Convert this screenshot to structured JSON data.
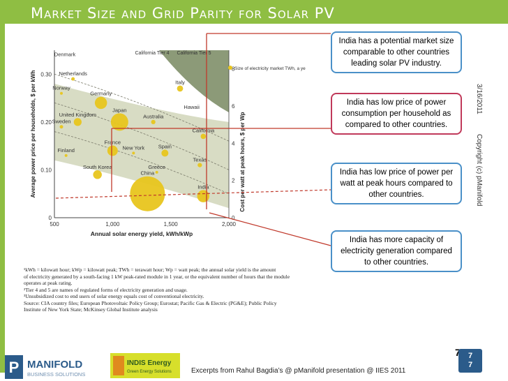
{
  "slide": {
    "title": "Market Size and Grid Parity for Solar PV",
    "side_date": "3/16/2011",
    "side_copyright": "Copyright (c) pManifold",
    "footer_note": "Excerpts from Rahul Bagdia’s @ pManifold presentation @ IIES 2011",
    "page_number": "7",
    "page_box_lines": [
      "7",
      "7"
    ]
  },
  "callouts": [
    "India has a potential market size comparable to other countries leading solar PV industry.",
    "India has low price of power consumption per household as compared to other countries.",
    "India has low price of power per watt at peak hours compared to other countries.",
    "India has more capacity of electricity generation compared to other countries."
  ],
  "logos": {
    "pmanifold_letter": "P",
    "pmanifold_name": "MANIFOLD",
    "pmanifold_sub": "BUSINESS SOLUTIONS",
    "indis_name": "INDIS Energy",
    "indis_sub": "Green Energy Solutions"
  },
  "colors": {
    "accent_green": "#8fbe43",
    "bubble_yellow": "#e8c51e",
    "band_dark": "#8c9a78",
    "band_light": "#d8dcc4",
    "callout_blue": "#4a90c8",
    "callout_red": "#c0395a",
    "connector_red": "#c0392b",
    "page_box": "#2b5b8a"
  },
  "chart_data": {
    "type": "scatter",
    "xlabel": "Annual solar energy yield, kWh/kWp",
    "ylabel": "Average power price per households, $ per kWh",
    "y2label": "Cost per watt at peak hours, $ per Wp",
    "xlim": [
      500,
      2000
    ],
    "ylim": [
      0,
      0.35
    ],
    "x_ticks": [
      "500",
      "1,000",
      "1,500",
      "2,000"
    ],
    "y_ticks": [
      "0",
      "0.10",
      "0.20",
      "0.30"
    ],
    "y2_ticks": [
      "0",
      "2",
      "4",
      "6",
      "8"
    ],
    "legend": "Size of electricity market TWh, a year",
    "tier_labels": [
      "California Tier 4",
      "California Tier 5"
    ],
    "points": [
      {
        "name": "Denmark",
        "x": 590,
        "y": 0.33,
        "size": 0
      },
      {
        "name": "Netherlands",
        "x": 660,
        "y": 0.29,
        "size": 4
      },
      {
        "name": "Norway",
        "x": 560,
        "y": 0.26,
        "size": 3
      },
      {
        "name": "Germany",
        "x": 900,
        "y": 0.24,
        "size": 14
      },
      {
        "name": "Italy",
        "x": 1580,
        "y": 0.27,
        "size": 7
      },
      {
        "name": "Hawaii",
        "x": 1680,
        "y": 0.22,
        "size": 0
      },
      {
        "name": "United Kingdom",
        "x": 700,
        "y": 0.2,
        "size": 9
      },
      {
        "name": "Sweden",
        "x": 560,
        "y": 0.19,
        "size": 4
      },
      {
        "name": "Japan",
        "x": 1060,
        "y": 0.2,
        "size": 20
      },
      {
        "name": "Australia",
        "x": 1350,
        "y": 0.2,
        "size": 5
      },
      {
        "name": "California",
        "x": 1780,
        "y": 0.17,
        "size": 6
      },
      {
        "name": "Finland",
        "x": 600,
        "y": 0.13,
        "size": 2
      },
      {
        "name": "France",
        "x": 1000,
        "y": 0.14,
        "size": 12
      },
      {
        "name": "New York",
        "x": 1180,
        "y": 0.135,
        "size": 3
      },
      {
        "name": "Spain",
        "x": 1450,
        "y": 0.135,
        "size": 8
      },
      {
        "name": "Texas",
        "x": 1750,
        "y": 0.11,
        "size": 5
      },
      {
        "name": "South Korea",
        "x": 870,
        "y": 0.09,
        "size": 10
      },
      {
        "name": "Greece",
        "x": 1380,
        "y": 0.095,
        "size": 2
      },
      {
        "name": "China",
        "x": 1300,
        "y": 0.05,
        "size": 40
      },
      {
        "name": "India",
        "x": 1780,
        "y": 0.045,
        "size": 14
      }
    ]
  },
  "footnotes": [
    "¹kWh = kilowatt hour; kWp = kilowatt peak; TWh = terawatt hour; Wp = watt peak; the annual solar yield is the amount",
    "of electricity generated by a south-facing 1 kW peak-rated module in 1 year, or the equivalent number of hours that the module",
    "operates at peak rating.",
    "²Tier 4 and 5 are names of regulated forms of electricity generation and usage.",
    "³Unsubsidized cost to end users of solar energy equals cost of conventional electricity.",
    "Source: CIA country files; European Photovoltaic Policy Group; Eurostat; Pacific Gas & Electric (PG&E); Public Policy",
    "Institute of New York State; McKinsey Global Institute analysis"
  ]
}
